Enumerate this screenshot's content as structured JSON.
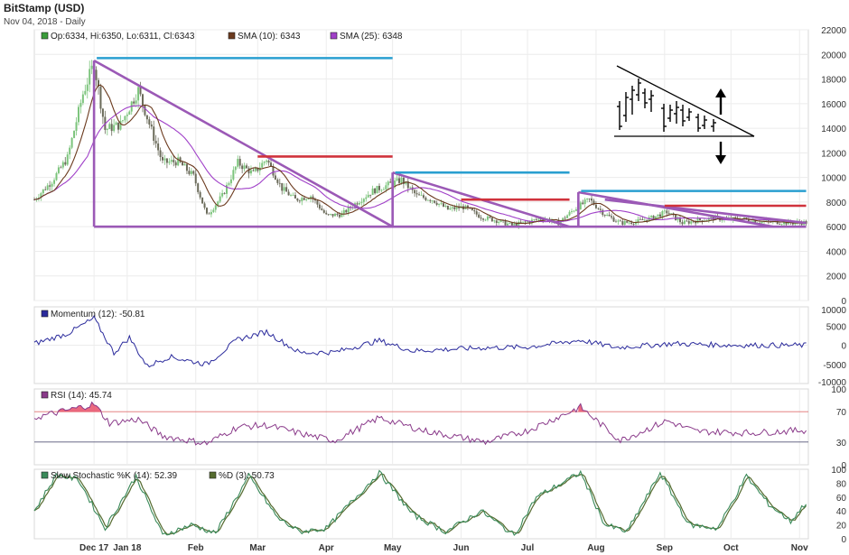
{
  "header": {
    "title": "BitStamp (USD)",
    "date_line": "Nov 04, 2018 - Daily"
  },
  "legend": {
    "ohlc": "Op:6334, Hi:6350, Lo:6311, Cl:6343",
    "sma10": "SMA (10): 6343",
    "sma25": "SMA (25): 6348",
    "momentum": "Momentum (12): -50.81",
    "rsi": "RSI (14): 45.74",
    "stoch_k": "Slow Stochastic %K (14): 52.39",
    "stoch_d": "%D (3): 50.73"
  },
  "colors": {
    "ohlc_swatch": "#3a9c3a",
    "candle_up": "#7cc47c",
    "candle_down": "#6b6b5a",
    "sma10": "#6b3a1e",
    "sma25": "#a040c8",
    "trend": "#9b59b6",
    "blue_level": "#2a9fd0",
    "red_level": "#d0323c",
    "momentum": "#2a2a9c",
    "rsi": "#8a3a8a",
    "rsi_over": "#e8506a",
    "stoch_k": "#3a8a5a",
    "stoch_d": "#556b2f"
  },
  "chart_data": [
    {
      "type": "candlestick",
      "instrument": "BitStamp (USD)",
      "interval": "Daily",
      "x_ticks": [
        "Dec 17",
        "Jan 18",
        "Feb",
        "Mar",
        "Apr",
        "May",
        "Jun",
        "Jul",
        "Aug",
        "Sep",
        "Oct",
        "Nov"
      ],
      "y_ticks": [
        0,
        2000,
        4000,
        6000,
        8000,
        10000,
        12000,
        14000,
        16000,
        18000,
        20000,
        22000
      ],
      "ylim": [
        0,
        22000
      ],
      "last_bar": {
        "open": 6334,
        "high": 6350,
        "low": 6311,
        "close": 6343
      },
      "close_approx": [
        [
          "2017-11-20",
          8200
        ],
        [
          "2017-11-28",
          9700
        ],
        [
          "2017-12-05",
          11600
        ],
        [
          "2017-12-12",
          16800
        ],
        [
          "2017-12-17",
          19300
        ],
        [
          "2017-12-22",
          13900
        ],
        [
          "2017-12-29",
          14300
        ],
        [
          "2018-01-06",
          17100
        ],
        [
          "2018-01-12",
          13800
        ],
        [
          "2018-01-17",
          11200
        ],
        [
          "2018-01-24",
          11300
        ],
        [
          "2018-01-31",
          10100
        ],
        [
          "2018-02-06",
          6900
        ],
        [
          "2018-02-13",
          8500
        ],
        [
          "2018-02-20",
          11200
        ],
        [
          "2018-02-27",
          10300
        ],
        [
          "2018-03-05",
          11500
        ],
        [
          "2018-03-12",
          9100
        ],
        [
          "2018-03-18",
          8200
        ],
        [
          "2018-03-25",
          8500
        ],
        [
          "2018-04-01",
          6900
        ],
        [
          "2018-04-08",
          7000
        ],
        [
          "2018-04-15",
          8000
        ],
        [
          "2018-04-22",
          8900
        ],
        [
          "2018-04-29",
          9400
        ],
        [
          "2018-05-05",
          9800
        ],
        [
          "2018-05-12",
          8500
        ],
        [
          "2018-05-19",
          8200
        ],
        [
          "2018-05-26",
          7400
        ],
        [
          "2018-06-02",
          7600
        ],
        [
          "2018-06-10",
          6800
        ],
        [
          "2018-06-17",
          6500
        ],
        [
          "2018-06-24",
          6100
        ],
        [
          "2018-07-01",
          6400
        ],
        [
          "2018-07-08",
          6700
        ],
        [
          "2018-07-15",
          6300
        ],
        [
          "2018-07-22",
          7400
        ],
        [
          "2018-07-29",
          8200
        ],
        [
          "2018-08-05",
          7000
        ],
        [
          "2018-08-12",
          6300
        ],
        [
          "2018-08-19",
          6400
        ],
        [
          "2018-08-26",
          6700
        ],
        [
          "2018-09-02",
          7200
        ],
        [
          "2018-09-09",
          6300
        ],
        [
          "2018-09-16",
          6500
        ],
        [
          "2018-09-23",
          6700
        ],
        [
          "2018-09-30",
          6600
        ],
        [
          "2018-10-07",
          6600
        ],
        [
          "2018-10-14",
          6400
        ],
        [
          "2018-10-21",
          6400
        ],
        [
          "2018-10-28",
          6300
        ],
        [
          "2018-11-04",
          6343
        ]
      ],
      "trendlines": [
        {
          "from": [
            "2017-12-17",
            19500
          ],
          "to": [
            "2018-05-01",
            6000
          ]
        },
        {
          "from": [
            "2018-05-01",
            10400
          ],
          "to": [
            "2018-07-20",
            6000
          ]
        },
        {
          "from": [
            "2018-07-24",
            8800
          ],
          "to": [
            "2018-10-20",
            6000
          ]
        },
        {
          "from": [
            "2018-08-05",
            8200
          ],
          "to": [
            "2018-11-04",
            6300
          ]
        }
      ],
      "vertical_lines": [
        {
          "x": "2017-12-17",
          "from": 6000,
          "to": 19500
        },
        {
          "x": "2018-05-01",
          "from": 6000,
          "to": 10400
        },
        {
          "x": "2018-07-24",
          "from": 6000,
          "to": 8800
        }
      ],
      "support_level": {
        "value": 6000,
        "from": "2017-12-17",
        "to": "2018-11-04"
      },
      "blue_levels": [
        {
          "value": 19700,
          "from": "2017-12-17",
          "to": "2018-05-01"
        },
        {
          "value": 10400,
          "from": "2018-05-01",
          "to": "2018-07-20"
        },
        {
          "value": 8900,
          "from": "2018-07-24",
          "to": "2018-11-04"
        }
      ],
      "red_levels": [
        {
          "value": 11700,
          "from": "2018-03-01",
          "to": "2018-05-01"
        },
        {
          "value": 8200,
          "from": "2018-06-01",
          "to": "2018-07-20"
        },
        {
          "value": 7700,
          "from": "2018-09-01",
          "to": "2018-11-04"
        }
      ],
      "pattern_inset": "descending triangle sketch with up and down arrows"
    },
    {
      "type": "line",
      "indicator": "Momentum (12)",
      "y_ticks": [
        10000,
        5000,
        0,
        -5000,
        -10000
      ],
      "ylim": [
        -10000,
        10000
      ],
      "last": -50.81,
      "values_approx": [
        [
          "2017-11-20",
          400
        ],
        [
          "2017-12-05",
          3000
        ],
        [
          "2017-12-17",
          7000
        ],
        [
          "2017-12-26",
          -2000
        ],
        [
          "2018-01-02",
          2000
        ],
        [
          "2018-01-10",
          -5500
        ],
        [
          "2018-01-20",
          -3000
        ],
        [
          "2018-02-06",
          -5000
        ],
        [
          "2018-02-20",
          1500
        ],
        [
          "2018-03-05",
          3500
        ],
        [
          "2018-03-20",
          -2000
        ],
        [
          "2018-04-05",
          -1800
        ],
        [
          "2018-04-25",
          1200
        ],
        [
          "2018-05-10",
          -1500
        ],
        [
          "2018-06-10",
          -700
        ],
        [
          "2018-07-01",
          -500
        ],
        [
          "2018-07-25",
          1300
        ],
        [
          "2018-08-10",
          -600
        ],
        [
          "2018-09-05",
          400
        ],
        [
          "2018-10-01",
          0
        ],
        [
          "2018-11-04",
          -50.81
        ]
      ]
    },
    {
      "type": "line",
      "indicator": "RSI (14)",
      "y_ticks": [
        100,
        70,
        30,
        0
      ],
      "ylim": [
        0,
        100
      ],
      "reference_lines": [
        70,
        30
      ],
      "last": 45.74,
      "values_approx": [
        [
          "2017-11-20",
          62
        ],
        [
          "2017-12-05",
          72
        ],
        [
          "2017-12-17",
          80
        ],
        [
          "2017-12-24",
          55
        ],
        [
          "2018-01-06",
          60
        ],
        [
          "2018-01-17",
          38
        ],
        [
          "2018-02-06",
          28
        ],
        [
          "2018-02-20",
          50
        ],
        [
          "2018-03-05",
          52
        ],
        [
          "2018-03-25",
          38
        ],
        [
          "2018-04-05",
          32
        ],
        [
          "2018-04-25",
          62
        ],
        [
          "2018-05-15",
          45
        ],
        [
          "2018-06-12",
          30
        ],
        [
          "2018-07-01",
          45
        ],
        [
          "2018-07-25",
          76
        ],
        [
          "2018-08-12",
          32
        ],
        [
          "2018-09-02",
          58
        ],
        [
          "2018-09-15",
          44
        ],
        [
          "2018-10-10",
          42
        ],
        [
          "2018-11-04",
          45.74
        ]
      ]
    },
    {
      "type": "line",
      "indicator": "Slow Stochastic",
      "y_ticks": [
        100,
        80,
        60,
        40,
        20,
        0
      ],
      "ylim": [
        0,
        100
      ],
      "series": [
        {
          "name": "%K (14)",
          "last": 52.39
        },
        {
          "name": "%D (3)",
          "last": 50.73
        }
      ],
      "k_values_approx": [
        [
          "2017-11-20",
          40
        ],
        [
          "2017-11-30",
          92
        ],
        [
          "2017-12-10",
          85
        ],
        [
          "2017-12-22",
          15
        ],
        [
          "2018-01-05",
          90
        ],
        [
          "2018-01-17",
          5
        ],
        [
          "2018-01-30",
          20
        ],
        [
          "2018-02-10",
          8
        ],
        [
          "2018-02-25",
          90
        ],
        [
          "2018-03-10",
          30
        ],
        [
          "2018-03-20",
          10
        ],
        [
          "2018-04-01",
          15
        ],
        [
          "2018-04-25",
          95
        ],
        [
          "2018-05-10",
          35
        ],
        [
          "2018-05-25",
          10
        ],
        [
          "2018-06-10",
          40
        ],
        [
          "2018-06-25",
          5
        ],
        [
          "2018-07-05",
          60
        ],
        [
          "2018-07-25",
          95
        ],
        [
          "2018-08-05",
          20
        ],
        [
          "2018-08-15",
          10
        ],
        [
          "2018-08-30",
          95
        ],
        [
          "2018-09-12",
          20
        ],
        [
          "2018-09-25",
          15
        ],
        [
          "2018-10-08",
          90
        ],
        [
          "2018-10-18",
          50
        ],
        [
          "2018-10-28",
          25
        ],
        [
          "2018-11-04",
          52.39
        ]
      ]
    }
  ]
}
